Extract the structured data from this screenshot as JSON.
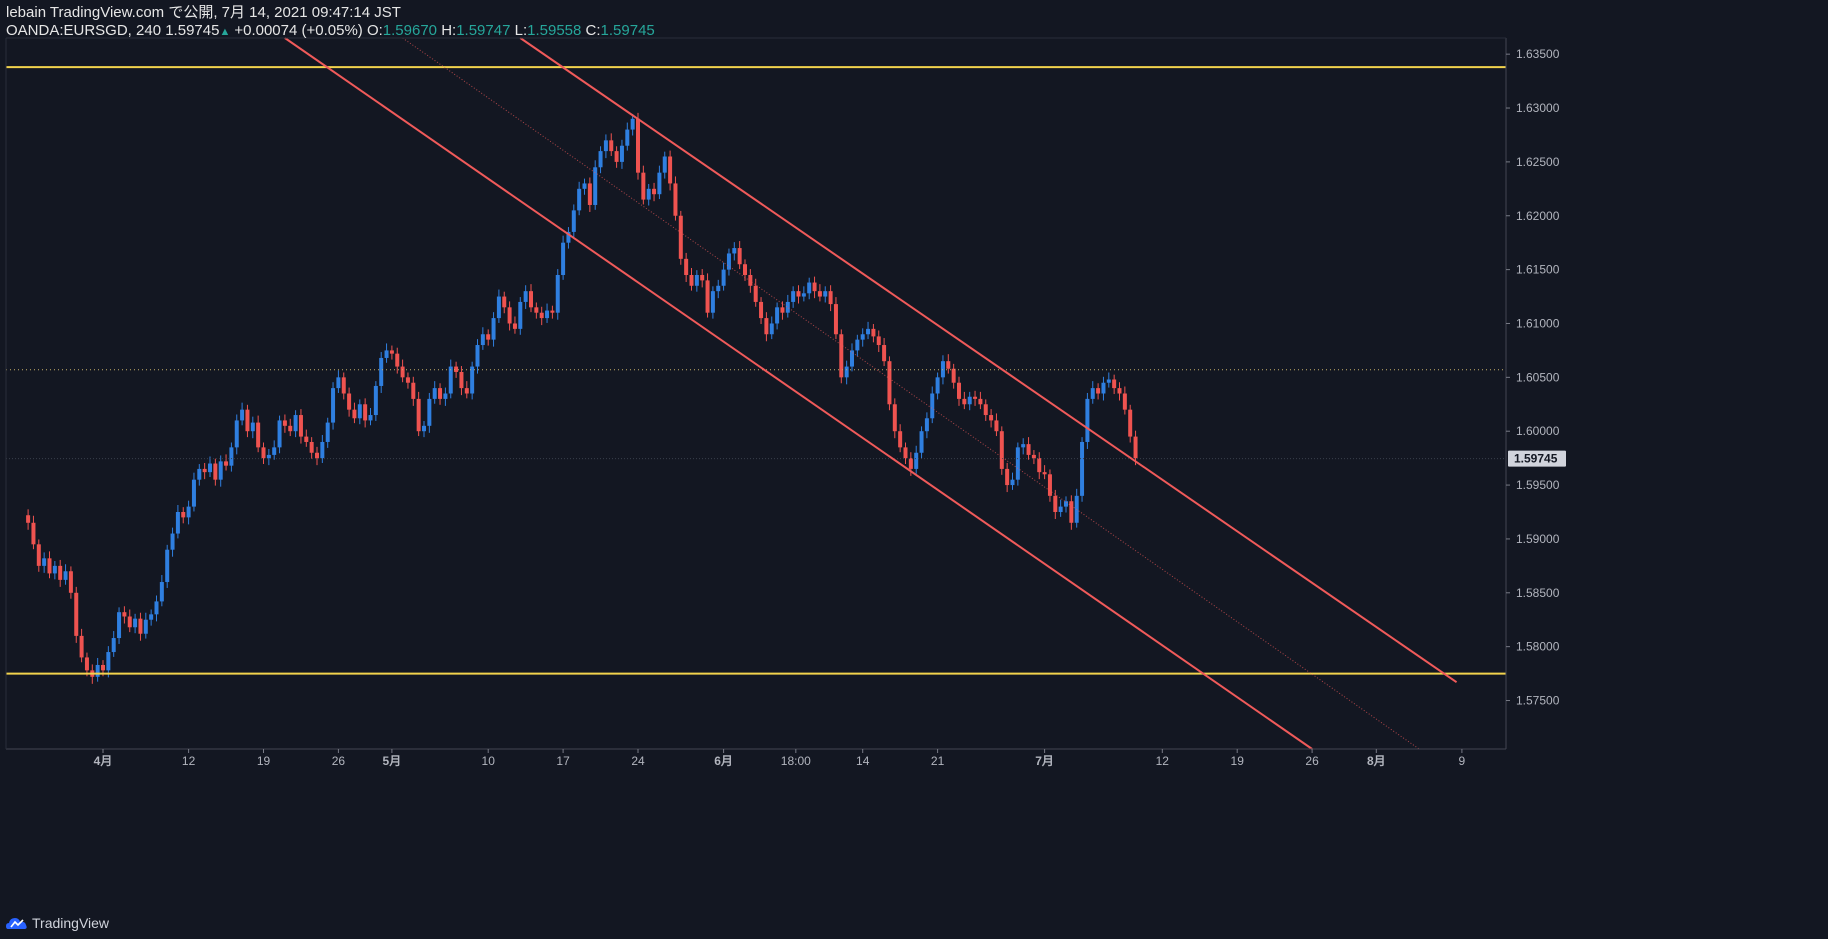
{
  "header": {
    "title": "lebain TradingView.com で公開, 7月 14, 2021 09:47:14 JST",
    "symbol": "OANDA:EURSGD, 240",
    "last": "1.59745",
    "change": "+0.00074 (+0.05%)",
    "o_label": "O:",
    "o_val": "1.59670",
    "h_label": "H:",
    "h_val": "1.59747",
    "l_label": "L:",
    "l_val": "1.59558",
    "c_label": "C:",
    "c_val": "1.59745"
  },
  "footer": {
    "brand": "TradingView"
  },
  "colors": {
    "background": "#131722",
    "up": "#2f7fe0",
    "down": "#ef5350",
    "channel": "#f05a5a",
    "support": "#f2d34d",
    "dotted_hline": "#c8b06a",
    "price_label_bg": "#d1d4dc"
  },
  "chart_data": {
    "type": "candlestick",
    "symbol": "OANDA:EURSGD",
    "timeframe": "240",
    "y_ticks": [
      "1.63500",
      "1.63000",
      "1.62500",
      "1.62000",
      "1.61500",
      "1.61000",
      "1.60500",
      "1.60000",
      "1.59500",
      "1.59000",
      "1.58500",
      "1.58000",
      "1.57500"
    ],
    "ylim": [
      1.5705,
      1.6365
    ],
    "x_ticks": [
      {
        "label": "4月",
        "bold": true,
        "day": 0
      },
      {
        "label": "12",
        "day": 8
      },
      {
        "label": "19",
        "day": 15
      },
      {
        "label": "26",
        "day": 22
      },
      {
        "label": "5月",
        "bold": true,
        "day": 27
      },
      {
        "label": "10",
        "day": 36
      },
      {
        "label": "17",
        "day": 43
      },
      {
        "label": "24",
        "day": 50
      },
      {
        "label": "6月",
        "bold": true,
        "day": 58
      },
      {
        "label": "18:00",
        "day": 64.75
      },
      {
        "label": "14",
        "day": 71
      },
      {
        "label": "21",
        "day": 78
      },
      {
        "label": "7月",
        "bold": true,
        "day": 88
      },
      {
        "label": "12",
        "day": 99
      },
      {
        "label": "19",
        "day": 106
      },
      {
        "label": "26",
        "day": 113
      },
      {
        "label": "8月",
        "bold": true,
        "day": 119
      },
      {
        "label": "9",
        "day": 127
      }
    ],
    "last_price": "1.59745",
    "support_levels": [
      1.6338,
      1.5775
    ],
    "dotted_level": 1.6057,
    "channel_lines": [
      {
        "day1": 17.0,
        "p1": 1.6365,
        "day2": 113.0,
        "p2": 1.5705
      },
      {
        "day1": 39.0,
        "p1": 1.6365,
        "day2": 126.5,
        "p2": 1.5767
      }
    ],
    "channel_midline": {
      "day1": 28.0,
      "p1": 1.6365,
      "day2": 123.0,
      "p2": 1.5705
    },
    "price_path": [
      [
        -7.5,
        1.5922
      ],
      [
        -7,
        1.5915
      ],
      [
        -6.5,
        1.5895
      ],
      [
        -6,
        1.5875
      ],
      [
        -5.5,
        1.5882
      ],
      [
        -5,
        1.5868
      ],
      [
        -4.5,
        1.5875
      ],
      [
        -4,
        1.5862
      ],
      [
        -3.5,
        1.587
      ],
      [
        -3,
        1.585
      ],
      [
        -2.5,
        1.581
      ],
      [
        -2,
        1.579
      ],
      [
        -1.5,
        1.5778
      ],
      [
        -1,
        1.5772
      ],
      [
        -0.5,
        1.5783
      ],
      [
        0,
        1.5778
      ],
      [
        0.5,
        1.5795
      ],
      [
        1,
        1.5808
      ],
      [
        1.5,
        1.5832
      ],
      [
        2,
        1.5828
      ],
      [
        2.5,
        1.5818
      ],
      [
        3,
        1.5826
      ],
      [
        3.5,
        1.5812
      ],
      [
        4,
        1.5825
      ],
      [
        4.5,
        1.583
      ],
      [
        5,
        1.5842
      ],
      [
        5.5,
        1.586
      ],
      [
        6,
        1.589
      ],
      [
        6.5,
        1.5905
      ],
      [
        7,
        1.5925
      ],
      [
        7.5,
        1.592
      ],
      [
        8,
        1.593
      ],
      [
        8.5,
        1.5955
      ],
      [
        9,
        1.5965
      ],
      [
        9.5,
        1.5962
      ],
      [
        10,
        1.597
      ],
      [
        10.5,
        1.5955
      ],
      [
        11,
        1.5972
      ],
      [
        11.5,
        1.5968
      ],
      [
        12,
        1.5985
      ],
      [
        12.5,
        1.601
      ],
      [
        13,
        1.602
      ],
      [
        13.5,
        1.6
      ],
      [
        14,
        1.6008
      ],
      [
        14.5,
        1.5985
      ],
      [
        15,
        1.5975
      ],
      [
        15.5,
        1.5978
      ],
      [
        16,
        1.5985
      ],
      [
        16.5,
        1.601
      ],
      [
        17,
        1.6005
      ],
      [
        17.5,
        1.6
      ],
      [
        18,
        1.6015
      ],
      [
        18.5,
        1.5995
      ],
      [
        19,
        1.599
      ],
      [
        19.5,
        1.598
      ],
      [
        20,
        1.5975
      ],
      [
        20.5,
        1.599
      ],
      [
        21,
        1.6008
      ],
      [
        21.5,
        1.604
      ],
      [
        22,
        1.605
      ],
      [
        22.5,
        1.6035
      ],
      [
        23,
        1.602
      ],
      [
        23.5,
        1.6012
      ],
      [
        24,
        1.6025
      ],
      [
        24.5,
        1.601
      ],
      [
        25,
        1.6015
      ],
      [
        25.5,
        1.6042
      ],
      [
        26,
        1.6068
      ],
      [
        26.5,
        1.6075
      ],
      [
        27,
        1.6072
      ],
      [
        27.5,
        1.606
      ],
      [
        28,
        1.605
      ],
      [
        28.5,
        1.6045
      ],
      [
        29,
        1.603
      ],
      [
        29.5,
        1.6
      ],
      [
        30,
        1.6005
      ],
      [
        30.5,
        1.603
      ],
      [
        31,
        1.604
      ],
      [
        31.5,
        1.603
      ],
      [
        32,
        1.6035
      ],
      [
        32.5,
        1.606
      ],
      [
        33,
        1.6055
      ],
      [
        33.5,
        1.604
      ],
      [
        34,
        1.6035
      ],
      [
        34.5,
        1.606
      ],
      [
        35,
        1.608
      ],
      [
        35.5,
        1.609
      ],
      [
        36,
        1.6085
      ],
      [
        36.5,
        1.6105
      ],
      [
        37,
        1.6125
      ],
      [
        37.5,
        1.6115
      ],
      [
        38,
        1.61
      ],
      [
        38.5,
        1.6095
      ],
      [
        39,
        1.612
      ],
      [
        39.5,
        1.613
      ],
      [
        40,
        1.6115
      ],
      [
        40.5,
        1.611
      ],
      [
        41,
        1.6105
      ],
      [
        41.5,
        1.6112
      ],
      [
        42,
        1.611
      ],
      [
        42.5,
        1.6145
      ],
      [
        43,
        1.6175
      ],
      [
        43.5,
        1.6185
      ],
      [
        44,
        1.6205
      ],
      [
        44.5,
        1.6225
      ],
      [
        45,
        1.623
      ],
      [
        45.5,
        1.621
      ],
      [
        46,
        1.6245
      ],
      [
        46.5,
        1.626
      ],
      [
        47,
        1.627
      ],
      [
        47.5,
        1.626
      ],
      [
        48,
        1.625
      ],
      [
        48.5,
        1.6265
      ],
      [
        49,
        1.628
      ],
      [
        49.5,
        1.629
      ],
      [
        50,
        1.624
      ],
      [
        50.5,
        1.6215
      ],
      [
        51,
        1.6225
      ],
      [
        51.5,
        1.622
      ],
      [
        52,
        1.624
      ],
      [
        52.5,
        1.6255
      ],
      [
        53,
        1.623
      ],
      [
        53.5,
        1.62
      ],
      [
        54,
        1.616
      ],
      [
        54.5,
        1.6145
      ],
      [
        55,
        1.6135
      ],
      [
        55.5,
        1.6145
      ],
      [
        56,
        1.614
      ],
      [
        56.5,
        1.611
      ],
      [
        57,
        1.613
      ],
      [
        57.5,
        1.6135
      ],
      [
        58,
        1.615
      ],
      [
        58.5,
        1.6165
      ],
      [
        59,
        1.617
      ],
      [
        59.5,
        1.6155
      ],
      [
        60,
        1.6145
      ],
      [
        60.5,
        1.6135
      ],
      [
        61,
        1.612
      ],
      [
        61.5,
        1.6105
      ],
      [
        62,
        1.609
      ],
      [
        62.5,
        1.61
      ],
      [
        63,
        1.6115
      ],
      [
        63.5,
        1.611
      ],
      [
        64,
        1.612
      ],
      [
        64.5,
        1.613
      ],
      [
        65,
        1.6125
      ],
      [
        65.5,
        1.6128
      ],
      [
        66,
        1.6138
      ],
      [
        66.5,
        1.613
      ],
      [
        67,
        1.6125
      ],
      [
        67.5,
        1.613
      ],
      [
        68,
        1.6118
      ],
      [
        68.5,
        1.609
      ],
      [
        69,
        1.605
      ],
      [
        69.5,
        1.606
      ],
      [
        70,
        1.6075
      ],
      [
        70.5,
        1.6085
      ],
      [
        71,
        1.609
      ],
      [
        71.5,
        1.6095
      ],
      [
        72,
        1.6088
      ],
      [
        72.5,
        1.608
      ],
      [
        73,
        1.6065
      ],
      [
        73.5,
        1.6025
      ],
      [
        74,
        1.6
      ],
      [
        74.5,
        1.5985
      ],
      [
        75,
        1.5975
      ],
      [
        75.5,
        1.5965
      ],
      [
        76,
        1.598
      ],
      [
        76.5,
        1.6
      ],
      [
        77,
        1.6012
      ],
      [
        77.5,
        1.6035
      ],
      [
        78,
        1.605
      ],
      [
        78.5,
        1.6065
      ],
      [
        79,
        1.6058
      ],
      [
        79.5,
        1.6045
      ],
      [
        80,
        1.603
      ],
      [
        80.5,
        1.6025
      ],
      [
        81,
        1.6032
      ],
      [
        81.5,
        1.603
      ],
      [
        82,
        1.6025
      ],
      [
        82.5,
        1.6015
      ],
      [
        83,
        1.601
      ],
      [
        83.5,
        1.6
      ],
      [
        84,
        1.5965
      ],
      [
        84.5,
        1.595
      ],
      [
        85,
        1.5955
      ],
      [
        85.5,
        1.5985
      ],
      [
        86,
        1.5988
      ],
      [
        86.5,
        1.5978
      ],
      [
        87,
        1.5975
      ],
      [
        87.5,
        1.5962
      ],
      [
        88,
        1.596
      ],
      [
        88.5,
        1.594
      ],
      [
        89,
        1.5925
      ],
      [
        89.5,
        1.593
      ],
      [
        90,
        1.5935
      ],
      [
        90.5,
        1.5915
      ],
      [
        91,
        1.594
      ],
      [
        91.5,
        1.599
      ],
      [
        92,
        1.603
      ],
      [
        92.5,
        1.604
      ],
      [
        93,
        1.6035
      ],
      [
        93.5,
        1.6045
      ],
      [
        94,
        1.6048
      ],
      [
        94.5,
        1.604
      ],
      [
        95,
        1.6035
      ],
      [
        95.5,
        1.602
      ],
      [
        96,
        1.5995
      ],
      [
        96.5,
        1.5975
      ]
    ]
  }
}
